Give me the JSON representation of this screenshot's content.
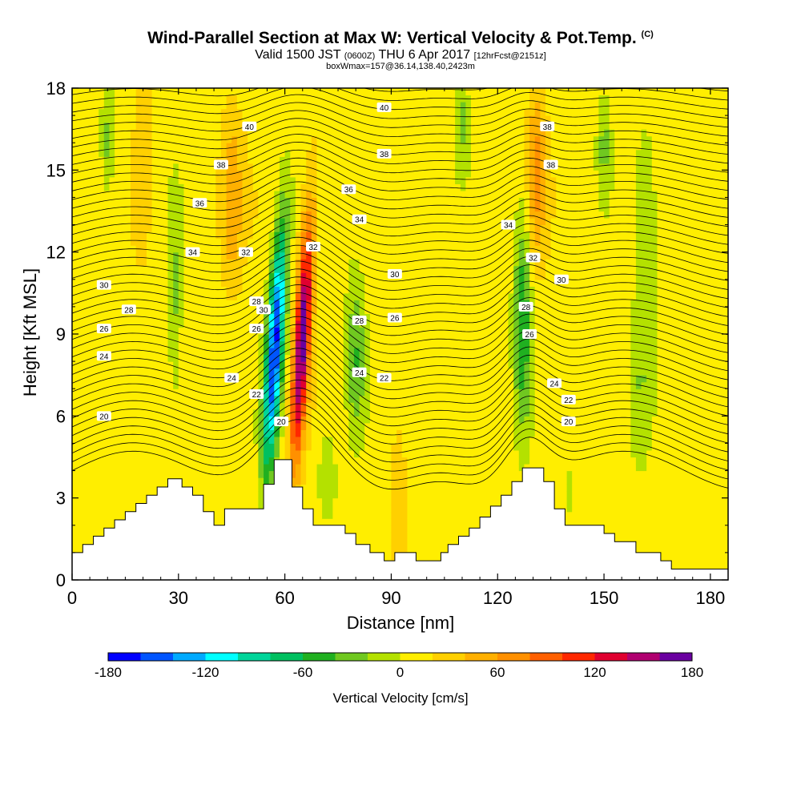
{
  "titles": {
    "main": "Wind-Parallel Section at Max W: Vertical Velocity & Pot.Temp.",
    "main_mark": "(C)",
    "valid_a": "Valid 1500 JST ",
    "valid_b": "(0600Z)",
    "valid_c": " THU 6 Apr 2017 ",
    "valid_d": "[12hrFcst@2151z]",
    "sub": "boxWmax=157@36.14,138.40,2423m"
  },
  "chart_data": {
    "type": "heatmap",
    "xlabel": "Distance [nm]",
    "ylabel": "Height [Kft MSL]",
    "xlim": [
      0,
      185
    ],
    "ylim": [
      0,
      18
    ],
    "x_ticks": [
      0,
      30,
      60,
      90,
      120,
      150,
      180
    ],
    "y_ticks": [
      0,
      3,
      6,
      9,
      12,
      15,
      18
    ],
    "colorbar": {
      "label": "Vertical Velocity [cm/s]",
      "min": -180,
      "max": 180,
      "tick_values": [
        -180,
        -120,
        -60,
        0,
        60,
        120,
        180
      ],
      "colors": [
        "#0000ff",
        "#0055ff",
        "#00aaff",
        "#00ffff",
        "#00d59a",
        "#00c060",
        "#20b020",
        "#70c820",
        "#b4e100",
        "#ffee00",
        "#ffd000",
        "#ffb000",
        "#ff9000",
        "#ff6000",
        "#ff2800",
        "#e00030",
        "#b00070",
        "#6a00a0"
      ]
    },
    "terrain_kft": [
      [
        0,
        1.0
      ],
      [
        3,
        1.0
      ],
      [
        3,
        1.3
      ],
      [
        6,
        1.3
      ],
      [
        6,
        1.6
      ],
      [
        9,
        1.6
      ],
      [
        9,
        1.9
      ],
      [
        12,
        1.9
      ],
      [
        12,
        2.2
      ],
      [
        15,
        2.2
      ],
      [
        15,
        2.5
      ],
      [
        18,
        2.5
      ],
      [
        18,
        2.8
      ],
      [
        21,
        2.8
      ],
      [
        21,
        3.1
      ],
      [
        24,
        3.1
      ],
      [
        24,
        3.4
      ],
      [
        27,
        3.4
      ],
      [
        27,
        3.7
      ],
      [
        31,
        3.7
      ],
      [
        31,
        3.4
      ],
      [
        34,
        3.4
      ],
      [
        34,
        3.1
      ],
      [
        37,
        3.1
      ],
      [
        37,
        2.5
      ],
      [
        40,
        2.5
      ],
      [
        40,
        2.0
      ],
      [
        43,
        2.0
      ],
      [
        43,
        2.6
      ],
      [
        46,
        2.6
      ],
      [
        46,
        2.6
      ],
      [
        54,
        2.6
      ],
      [
        54,
        3.5
      ],
      [
        57,
        3.5
      ],
      [
        57,
        4.4
      ],
      [
        62,
        4.4
      ],
      [
        62,
        3.4
      ],
      [
        65,
        3.4
      ],
      [
        65,
        2.6
      ],
      [
        68,
        2.6
      ],
      [
        68,
        2.0
      ],
      [
        77,
        2.0
      ],
      [
        77,
        1.7
      ],
      [
        80,
        1.7
      ],
      [
        80,
        1.3
      ],
      [
        84,
        1.3
      ],
      [
        84,
        1.0
      ],
      [
        88,
        1.0
      ],
      [
        88,
        0.7
      ],
      [
        91,
        0.7
      ],
      [
        91,
        1.0
      ],
      [
        97,
        1.0
      ],
      [
        97,
        0.7
      ],
      [
        104,
        0.7
      ],
      [
        104,
        1.0
      ],
      [
        106,
        1.0
      ],
      [
        106,
        1.3
      ],
      [
        109,
        1.3
      ],
      [
        109,
        1.6
      ],
      [
        112,
        1.6
      ],
      [
        112,
        1.9
      ],
      [
        115,
        1.9
      ],
      [
        115,
        2.3
      ],
      [
        118,
        2.3
      ],
      [
        118,
        2.7
      ],
      [
        121,
        2.7
      ],
      [
        121,
        3.1
      ],
      [
        124,
        3.1
      ],
      [
        124,
        3.6
      ],
      [
        127,
        3.6
      ],
      [
        127,
        4.1
      ],
      [
        133,
        4.1
      ],
      [
        133,
        3.6
      ],
      [
        136,
        3.6
      ],
      [
        136,
        2.6
      ],
      [
        139,
        2.6
      ],
      [
        139,
        2.0
      ],
      [
        143,
        2.0
      ],
      [
        143,
        2.0
      ],
      [
        150,
        2.0
      ],
      [
        150,
        1.7
      ],
      [
        153,
        1.7
      ],
      [
        153,
        1.4
      ],
      [
        159,
        1.4
      ],
      [
        159,
        1.0
      ],
      [
        166,
        1.0
      ],
      [
        166,
        0.7
      ],
      [
        169,
        0.7
      ],
      [
        169,
        0.4
      ],
      [
        176,
        0.4
      ],
      [
        176,
        0.4
      ],
      [
        185,
        0.4
      ]
    ],
    "isentrope_labels": [
      {
        "v": "40",
        "x": 50,
        "y": 16.6
      },
      {
        "v": "40",
        "x": 88,
        "y": 17.3
      },
      {
        "v": "38",
        "x": 42,
        "y": 15.2
      },
      {
        "v": "38",
        "x": 88,
        "y": 15.6
      },
      {
        "v": "38",
        "x": 134,
        "y": 16.6
      },
      {
        "v": "38",
        "x": 135,
        "y": 15.2
      },
      {
        "v": "36",
        "x": 36,
        "y": 13.8
      },
      {
        "v": "36",
        "x": 78,
        "y": 14.3
      },
      {
        "v": "34",
        "x": 34,
        "y": 12.0
      },
      {
        "v": "34",
        "x": 81,
        "y": 13.2
      },
      {
        "v": "34",
        "x": 123,
        "y": 13.0
      },
      {
        "v": "32",
        "x": 49,
        "y": 12.0
      },
      {
        "v": "32",
        "x": 68,
        "y": 12.2
      },
      {
        "v": "32",
        "x": 130,
        "y": 11.8
      },
      {
        "v": "30",
        "x": 9,
        "y": 10.8
      },
      {
        "v": "30",
        "x": 54,
        "y": 9.9
      },
      {
        "v": "30",
        "x": 91,
        "y": 11.2
      },
      {
        "v": "30",
        "x": 138,
        "y": 11.0
      },
      {
        "v": "28",
        "x": 16,
        "y": 9.9
      },
      {
        "v": "28",
        "x": 52,
        "y": 10.2
      },
      {
        "v": "28",
        "x": 81,
        "y": 9.5
      },
      {
        "v": "28",
        "x": 128,
        "y": 10.0
      },
      {
        "v": "26",
        "x": 9,
        "y": 9.2
      },
      {
        "v": "26",
        "x": 52,
        "y": 9.2
      },
      {
        "v": "26",
        "x": 91,
        "y": 9.6
      },
      {
        "v": "26",
        "x": 129,
        "y": 9.0
      },
      {
        "v": "24",
        "x": 9,
        "y": 8.2
      },
      {
        "v": "24",
        "x": 45,
        "y": 7.4
      },
      {
        "v": "24",
        "x": 81,
        "y": 7.6
      },
      {
        "v": "24",
        "x": 136,
        "y": 7.2
      },
      {
        "v": "22",
        "x": 52,
        "y": 6.8
      },
      {
        "v": "22",
        "x": 88,
        "y": 7.4
      },
      {
        "v": "22",
        "x": 140,
        "y": 6.6
      },
      {
        "v": "20",
        "x": 9,
        "y": 6.0
      },
      {
        "v": "20",
        "x": 59,
        "y": 5.8
      },
      {
        "v": "20",
        "x": 140,
        "y": 5.8
      }
    ]
  }
}
